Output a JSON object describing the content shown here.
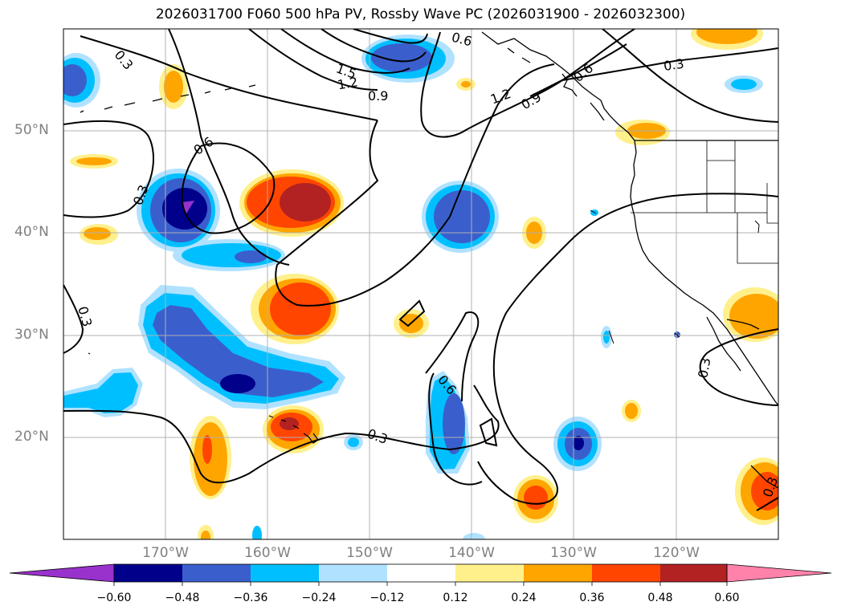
{
  "title": "2026031700 F060 500 hPa PV, Rossby Wave PC (2026031900 - 2026032300)",
  "lat_labels": [
    "50°N",
    "40°N",
    "30°N",
    "20°N"
  ],
  "lon_labels": [
    "170°W",
    "160°W",
    "150°W",
    "140°W",
    "130°W",
    "120°W"
  ],
  "contour_labels": [
    "0.3",
    "0.6",
    "0.9",
    "1.2",
    "1.5",
    "0.3",
    "0.6",
    "0.9",
    "1.2",
    "0.6",
    "0.3",
    "0.3",
    "0.6",
    "0.3",
    "0.3",
    "0.3"
  ],
  "colorbar": {
    "ticks": [
      "−0.60",
      "−0.48",
      "−0.36",
      "−0.24",
      "−0.12",
      "0.12",
      "0.24",
      "0.36",
      "0.48",
      "0.60"
    ],
    "colors": [
      "#9932cc",
      "#00008b",
      "#3a5fcd",
      "#00bfff",
      "#b0e2ff",
      "#ffffff",
      "#fff08c",
      "#ffa500",
      "#ff4500",
      "#b22222",
      "#ff82ab"
    ]
  },
  "colors": {
    "purple": "#9932cc",
    "navy": "#00008b",
    "royal": "#3a5fcd",
    "sky": "#00bfff",
    "pale_blue": "#b0e2ff",
    "pale_yellow": "#fff08c",
    "orange": "#ffa500",
    "orange_red": "#ff4500",
    "firebrick": "#b22222",
    "pink": "#ff82ab",
    "grid": "#b0b0b0",
    "tick_label": "#808080"
  }
}
